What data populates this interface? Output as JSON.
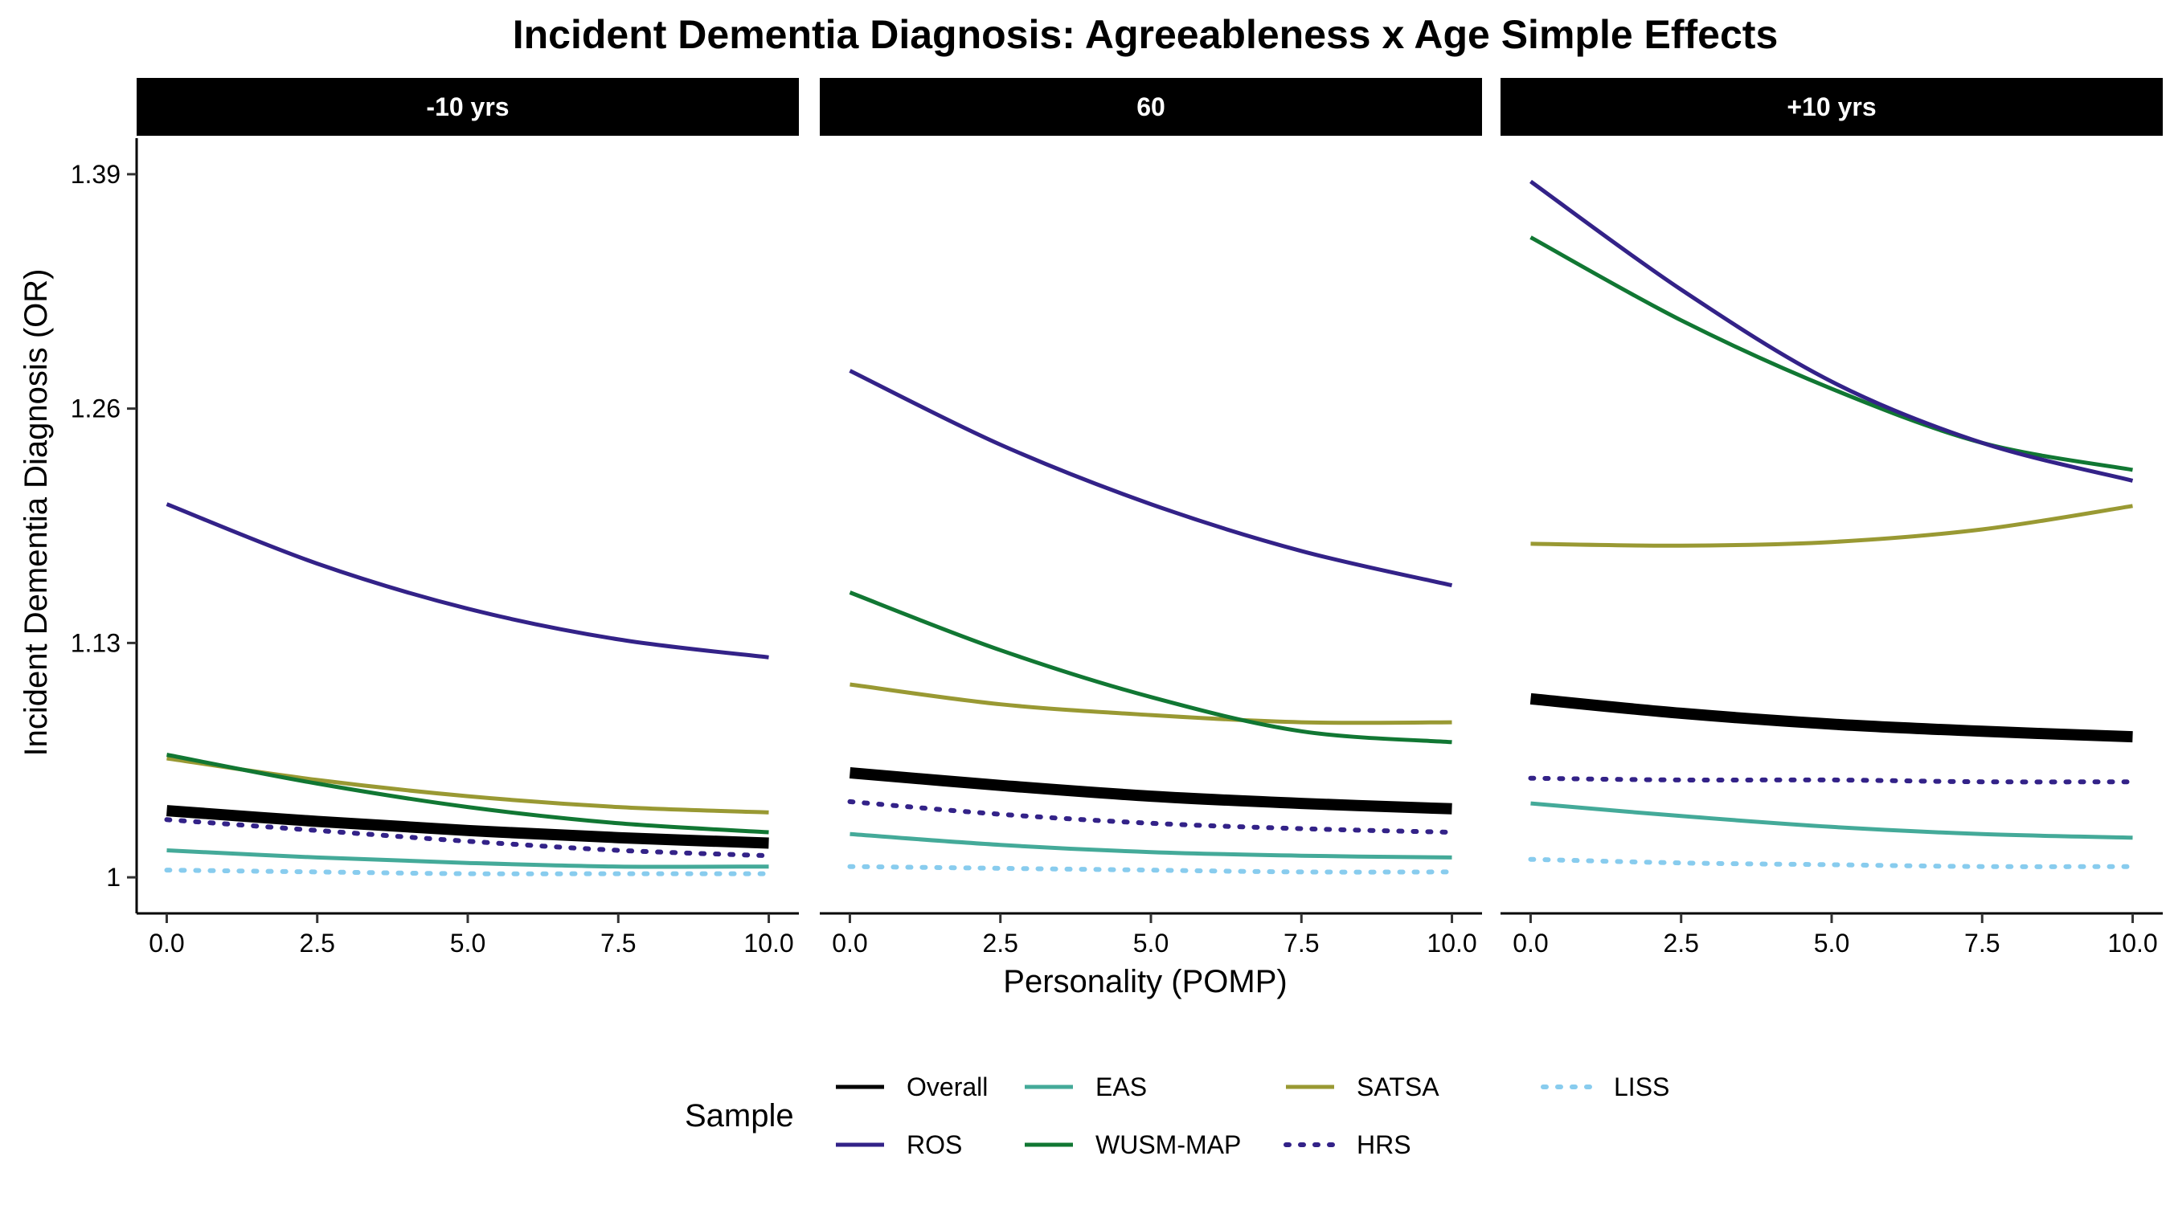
{
  "chart_data": {
    "type": "line",
    "title": "Incident Dementia Diagnosis: Agreeableness x Age Simple Effects",
    "xlabel": "Personality (POMP)",
    "ylabel": "Incident Dementia Diagnosis (OR)",
    "xlim": [
      -0.5,
      10.5
    ],
    "ylim": [
      0.98,
      1.41
    ],
    "x_ticks": [
      0,
      2.5,
      5,
      7.5,
      10
    ],
    "x_tick_labels": [
      "0.0",
      "2.5",
      "5.0",
      "7.5",
      "10.0"
    ],
    "y_ticks": [
      1,
      1.13,
      1.26,
      1.39
    ],
    "y_tick_labels": [
      "1",
      "1.13",
      "1.26",
      "1.39"
    ],
    "x": [
      0,
      2.5,
      5,
      7.5,
      10
    ],
    "legend": {
      "title": "Sample",
      "placement": "bottom"
    },
    "series_styles": [
      {
        "name": "Overall",
        "color": "#000000",
        "width": 14,
        "dash": "solid"
      },
      {
        "name": "ROS",
        "color": "#332288",
        "width": 5,
        "dash": "solid"
      },
      {
        "name": "EAS",
        "color": "#44AA99",
        "width": 5,
        "dash": "solid"
      },
      {
        "name": "WUSM-MAP",
        "color": "#117733",
        "width": 5,
        "dash": "solid"
      },
      {
        "name": "SATSA",
        "color": "#999933",
        "width": 5,
        "dash": "solid"
      },
      {
        "name": "HRS",
        "color": "#332288",
        "width": 6,
        "dash": "dotted"
      },
      {
        "name": "LISS",
        "color": "#88CCEE",
        "width": 6,
        "dash": "dotted"
      }
    ],
    "panels": [
      {
        "label": "-10 yrs",
        "series": [
          {
            "name": "Overall",
            "values": [
              1.037,
              1.031,
              1.026,
              1.022,
              1.019
            ]
          },
          {
            "name": "ROS",
            "values": [
              1.207,
              1.174,
              1.149,
              1.132,
              1.122
            ]
          },
          {
            "name": "EAS",
            "values": [
              1.015,
              1.011,
              1.008,
              1.006,
              1.006
            ]
          },
          {
            "name": "WUSM-MAP",
            "values": [
              1.068,
              1.052,
              1.039,
              1.03,
              1.025
            ]
          },
          {
            "name": "SATSA",
            "values": [
              1.066,
              1.054,
              1.045,
              1.039,
              1.036
            ]
          },
          {
            "name": "HRS",
            "values": [
              1.032,
              1.026,
              1.02,
              1.015,
              1.012
            ]
          },
          {
            "name": "LISS",
            "values": [
              1.004,
              1.003,
              1.002,
              1.002,
              1.002
            ]
          }
        ]
      },
      {
        "label": "60",
        "series": [
          {
            "name": "Overall",
            "values": [
              1.058,
              1.051,
              1.045,
              1.041,
              1.038
            ]
          },
          {
            "name": "ROS",
            "values": [
              1.281,
              1.24,
              1.207,
              1.181,
              1.162
            ]
          },
          {
            "name": "EAS",
            "values": [
              1.024,
              1.018,
              1.014,
              1.012,
              1.011
            ]
          },
          {
            "name": "WUSM-MAP",
            "values": [
              1.158,
              1.126,
              1.1,
              1.081,
              1.075
            ]
          },
          {
            "name": "SATSA",
            "values": [
              1.107,
              1.096,
              1.09,
              1.086,
              1.086
            ]
          },
          {
            "name": "HRS",
            "values": [
              1.042,
              1.035,
              1.03,
              1.027,
              1.025
            ]
          },
          {
            "name": "LISS",
            "values": [
              1.006,
              1.005,
              1.004,
              1.003,
              1.003
            ]
          }
        ]
      },
      {
        "label": "+10 yrs",
        "series": [
          {
            "name": "Overall",
            "values": [
              1.099,
              1.091,
              1.085,
              1.081,
              1.078
            ]
          },
          {
            "name": "ROS",
            "values": [
              1.386,
              1.326,
              1.275,
              1.241,
              1.22
            ]
          },
          {
            "name": "EAS",
            "values": [
              1.041,
              1.034,
              1.028,
              1.024,
              1.022
            ]
          },
          {
            "name": "WUSM-MAP",
            "values": [
              1.355,
              1.309,
              1.271,
              1.241,
              1.226
            ]
          },
          {
            "name": "SATSA",
            "values": [
              1.185,
              1.184,
              1.186,
              1.193,
              1.206
            ]
          },
          {
            "name": "HRS",
            "values": [
              1.055,
              1.054,
              1.054,
              1.053,
              1.053
            ]
          },
          {
            "name": "LISS",
            "values": [
              1.01,
              1.008,
              1.007,
              1.006,
              1.006
            ]
          }
        ]
      }
    ]
  }
}
